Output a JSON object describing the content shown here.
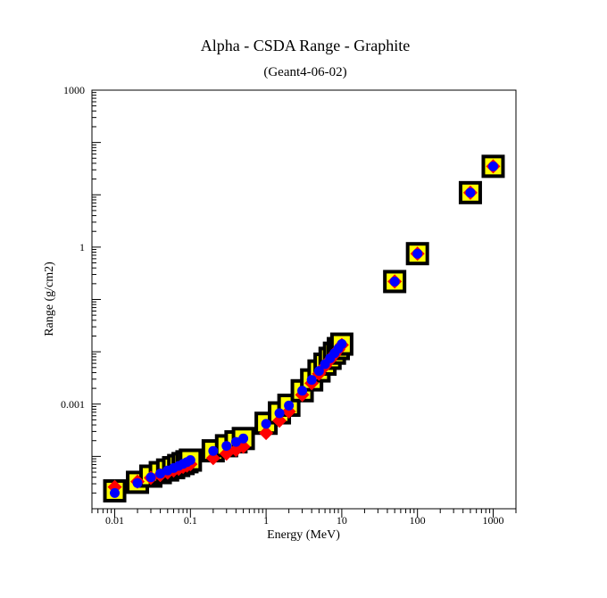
{
  "chart_data": {
    "type": "scatter",
    "title": "Alpha - CSDA Range - Graphite",
    "subtitle": "(Geant4-06-02)",
    "xlabel": "Energy (MeV)",
    "ylabel": "Range (g/cm2)",
    "x_scale": "log",
    "y_scale": "log",
    "xlim": [
      0.005,
      2000
    ],
    "ylim": [
      1e-05,
      1000
    ],
    "x_tick_labels": [
      {
        "value": 0.01,
        "label": "0.01"
      },
      {
        "value": 0.1,
        "label": "0.1"
      },
      {
        "value": 1,
        "label": "1"
      },
      {
        "value": 10,
        "label": "10"
      },
      {
        "value": 100,
        "label": "100"
      },
      {
        "value": 1000,
        "label": "1000"
      }
    ],
    "y_tick_labels": [
      {
        "value": 0.001,
        "label": "0.001"
      },
      {
        "value": 1,
        "label": "1"
      },
      {
        "value": 1000,
        "label": "1000"
      }
    ],
    "grid": false,
    "colors": {
      "reference_square_border": "#000000",
      "reference_square_fill": "#ffff00",
      "series_diamond": "#ff0000",
      "series_circle": "#0000ff"
    },
    "series": [
      {
        "marker": "square",
        "x": [
          0.01,
          0.02,
          0.03,
          0.04,
          0.05,
          0.06,
          0.07,
          0.08,
          0.09,
          0.1,
          0.2,
          0.3,
          0.4,
          0.5,
          1,
          1.5,
          2,
          3,
          4,
          5,
          6,
          7,
          8,
          9,
          10,
          50,
          100,
          500,
          1000
        ],
        "y": [
          2.2e-05,
          3.2e-05,
          4.2e-05,
          4.9e-05,
          5.5e-05,
          6.1e-05,
          6.7e-05,
          7.3e-05,
          7.9e-05,
          8.5e-05,
          0.000128,
          0.00016,
          0.00019,
          0.00022,
          0.00043,
          0.00068,
          0.00095,
          0.0018,
          0.0029,
          0.0043,
          0.0058,
          0.0075,
          0.0094,
          0.0115,
          0.014,
          0.22,
          0.75,
          11,
          35
        ]
      },
      {
        "marker": "diamond",
        "x": [
          0.01,
          0.02,
          0.03,
          0.04,
          0.05,
          0.06,
          0.07,
          0.08,
          0.09,
          0.1,
          0.2,
          0.3,
          0.4,
          0.5,
          1,
          1.5,
          2,
          3,
          4,
          5,
          6,
          7,
          8,
          9,
          10,
          50,
          100,
          500,
          1000
        ],
        "y": [
          2.6e-05,
          3.3e-05,
          3.9e-05,
          4.4e-05,
          4.9e-05,
          5.4e-05,
          5.8e-05,
          6.3e-05,
          6.7e-05,
          7.1e-05,
          9.3e-05,
          0.000113,
          0.000133,
          0.000153,
          0.00028,
          0.00048,
          0.00072,
          0.0015,
          0.0025,
          0.0038,
          0.0053,
          0.007,
          0.0089,
          0.011,
          0.0135,
          0.22,
          0.75,
          11,
          35
        ]
      },
      {
        "marker": "circle",
        "x": [
          0.01,
          0.02,
          0.03,
          0.04,
          0.05,
          0.06,
          0.07,
          0.08,
          0.09,
          0.1,
          0.2,
          0.3,
          0.4,
          0.5,
          1,
          1.5,
          2,
          3,
          4,
          5,
          6,
          7,
          8,
          9,
          10,
          50,
          100,
          500,
          1000
        ],
        "y": [
          2e-05,
          3.1e-05,
          4e-05,
          4.7e-05,
          5.4e-05,
          6e-05,
          6.6e-05,
          7.2e-05,
          7.8e-05,
          8.5e-05,
          0.000127,
          0.000159,
          0.000189,
          0.00022,
          0.00042,
          0.00067,
          0.00094,
          0.0018,
          0.0029,
          0.0043,
          0.0058,
          0.0075,
          0.0094,
          0.0115,
          0.0141,
          0.22,
          0.75,
          11,
          35
        ]
      }
    ]
  }
}
